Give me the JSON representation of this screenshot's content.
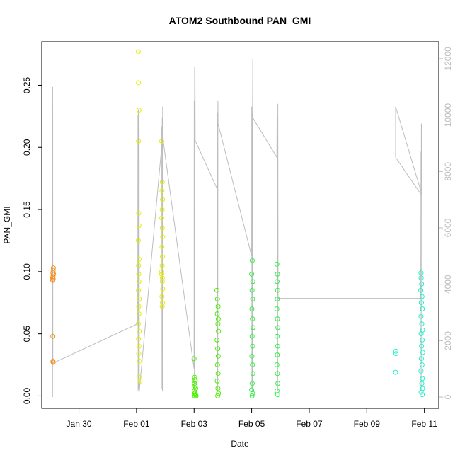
{
  "chart_data": {
    "type": "scatter",
    "title": "ATOM2 Southbound PAN_GMI",
    "xlabel": "Date",
    "ylabel": "PAN_GMI",
    "x_type": "date",
    "xlim": [
      "2017-01-28T17:00",
      "2017-02-11T12:00"
    ],
    "x_ticks": [
      {
        "date": "2017-01-30",
        "label": "Jan 30"
      },
      {
        "date": "2017-02-01",
        "label": "Feb 01"
      },
      {
        "date": "2017-02-03",
        "label": "Feb 03"
      },
      {
        "date": "2017-02-05",
        "label": "Feb 05"
      },
      {
        "date": "2017-02-07",
        "label": "Feb 07"
      },
      {
        "date": "2017-02-09",
        "label": "Feb 09"
      },
      {
        "date": "2017-02-11",
        "label": "Feb 11"
      }
    ],
    "ylim": [
      -0.01,
      0.285
    ],
    "y_ticks": [
      "0.00",
      "0.05",
      "0.10",
      "0.15",
      "0.20",
      "0.25"
    ],
    "y2lim": [
      -400,
      12600
    ],
    "y2_ticks": [
      "0",
      "2000",
      "4000",
      "6000",
      "8000",
      "10000",
      "12000"
    ],
    "grid": false,
    "marker": "open-circle",
    "altitude_color": "#bdbdbd",
    "groups": [
      {
        "color": "#f5901e",
        "points": [
          [
            "2017-01-29T02:00",
            0.095
          ],
          [
            "2017-01-29T02:10",
            0.093
          ],
          [
            "2017-01-29T02:20",
            0.099
          ],
          [
            "2017-01-29T02:30",
            0.101
          ],
          [
            "2017-01-29T02:40",
            0.103
          ],
          [
            "2017-01-29T02:50",
            0.098
          ],
          [
            "2017-01-29T02:20",
            0.096
          ],
          [
            "2017-01-29T02:30",
            0.094
          ],
          [
            "2017-01-29T02:15",
            0.048
          ],
          [
            "2017-01-29T02:20",
            0.028
          ],
          [
            "2017-01-29T02:30",
            0.027
          ]
        ]
      },
      {
        "color": "#e6f000",
        "points": [
          [
            "2017-02-01T01:30",
            0.277
          ],
          [
            "2017-02-01T01:40",
            0.252
          ],
          [
            "2017-02-01T02:00",
            0.23
          ],
          [
            "2017-02-01T01:40",
            0.205
          ],
          [
            "2017-02-01T01:50",
            0.147
          ],
          [
            "2017-02-01T02:00",
            0.137
          ],
          [
            "2017-02-01T01:30",
            0.125
          ],
          [
            "2017-02-01T02:10",
            0.11
          ],
          [
            "2017-02-01T01:40",
            0.105
          ],
          [
            "2017-02-01T01:50",
            0.098
          ],
          [
            "2017-02-01T02:00",
            0.092
          ],
          [
            "2017-02-01T01:40",
            0.085
          ],
          [
            "2017-02-01T02:20",
            0.078
          ],
          [
            "2017-02-01T01:50",
            0.072
          ],
          [
            "2017-02-01T02:00",
            0.066
          ],
          [
            "2017-02-01T01:30",
            0.058
          ],
          [
            "2017-02-01T02:10",
            0.052
          ],
          [
            "2017-02-01T01:40",
            0.046
          ],
          [
            "2017-02-01T02:00",
            0.04
          ],
          [
            "2017-02-01T01:50",
            0.034
          ],
          [
            "2017-02-01T02:20",
            0.028
          ],
          [
            "2017-02-01T02:00",
            0.015
          ],
          [
            "2017-02-01T03:00",
            0.012
          ],
          [
            "2017-02-01T21:00",
            0.205
          ],
          [
            "2017-02-01T21:30",
            0.172
          ],
          [
            "2017-02-01T21:10",
            0.165
          ],
          [
            "2017-02-01T21:40",
            0.158
          ],
          [
            "2017-02-01T21:20",
            0.15
          ],
          [
            "2017-02-01T21:00",
            0.143
          ],
          [
            "2017-02-01T21:30",
            0.135
          ],
          [
            "2017-02-01T21:50",
            0.128
          ],
          [
            "2017-02-01T21:10",
            0.12
          ],
          [
            "2017-02-01T21:40",
            0.112
          ],
          [
            "2017-02-01T21:20",
            0.105
          ],
          [
            "2017-02-01T21:00",
            0.098
          ],
          [
            "2017-02-01T21:30",
            0.092
          ],
          [
            "2017-02-01T21:50",
            0.086
          ],
          [
            "2017-02-01T21:10",
            0.08
          ],
          [
            "2017-02-01T21:40",
            0.075
          ],
          [
            "2017-02-01T21:20",
            0.072
          ],
          [
            "2017-02-01T21:00",
            0.1
          ],
          [
            "2017-02-01T21:30",
            0.095
          ]
        ]
      },
      {
        "color": "#4cf000",
        "points": [
          [
            "2017-02-03T00:00",
            0.03
          ],
          [
            "2017-02-03T00:30",
            0.015
          ],
          [
            "2017-02-03T01:00",
            0.012
          ],
          [
            "2017-02-03T00:20",
            0.01
          ],
          [
            "2017-02-03T00:50",
            0.008
          ],
          [
            "2017-02-03T01:20",
            0.006
          ],
          [
            "2017-02-03T00:10",
            0.004
          ],
          [
            "2017-02-03T00:40",
            0.002
          ],
          [
            "2017-02-03T01:10",
            0.001
          ],
          [
            "2017-02-03T01:40",
            0.0
          ],
          [
            "2017-02-03T00:30",
            0.0
          ],
          [
            "2017-02-03T00:50",
            0.013
          ],
          [
            "2017-02-03T19:00",
            0.085
          ],
          [
            "2017-02-03T19:30",
            0.078
          ],
          [
            "2017-02-03T20:00",
            0.072
          ],
          [
            "2017-02-03T19:20",
            0.066
          ],
          [
            "2017-02-03T19:50",
            0.058
          ],
          [
            "2017-02-03T20:20",
            0.052
          ],
          [
            "2017-02-03T19:10",
            0.045
          ],
          [
            "2017-02-03T19:40",
            0.038
          ],
          [
            "2017-02-03T20:10",
            0.032
          ],
          [
            "2017-02-03T19:30",
            0.025
          ],
          [
            "2017-02-03T20:00",
            0.018
          ],
          [
            "2017-02-03T19:20",
            0.012
          ],
          [
            "2017-02-03T19:50",
            0.006
          ],
          [
            "2017-02-03T20:20",
            0.002
          ],
          [
            "2017-02-03T19:40",
            0.0
          ],
          [
            "2017-02-03T20:10",
            0.062
          ]
        ]
      },
      {
        "color": "#2ff246",
        "points": [
          [
            "2017-02-05T00:30",
            0.109
          ],
          [
            "2017-02-05T00:00",
            0.098
          ],
          [
            "2017-02-05T01:00",
            0.092
          ],
          [
            "2017-02-05T00:20",
            0.085
          ],
          [
            "2017-02-05T00:50",
            0.078
          ],
          [
            "2017-02-05T00:10",
            0.07
          ],
          [
            "2017-02-05T00:40",
            0.062
          ],
          [
            "2017-02-05T01:10",
            0.055
          ],
          [
            "2017-02-05T00:20",
            0.048
          ],
          [
            "2017-02-05T00:50",
            0.04
          ],
          [
            "2017-02-05T00:10",
            0.032
          ],
          [
            "2017-02-05T00:40",
            0.025
          ],
          [
            "2017-02-05T01:00",
            0.018
          ],
          [
            "2017-02-05T00:30",
            0.01
          ],
          [
            "2017-02-05T00:00",
            0.005
          ],
          [
            "2017-02-05T00:50",
            0.002
          ],
          [
            "2017-02-05T00:20",
            0.0
          ],
          [
            "2017-02-05T21:00",
            0.106
          ],
          [
            "2017-02-05T21:30",
            0.098
          ],
          [
            "2017-02-05T21:10",
            0.092
          ],
          [
            "2017-02-05T21:40",
            0.085
          ],
          [
            "2017-02-05T21:20",
            0.078
          ],
          [
            "2017-02-05T21:00",
            0.07
          ],
          [
            "2017-02-05T21:30",
            0.062
          ],
          [
            "2017-02-05T21:50",
            0.055
          ],
          [
            "2017-02-05T21:10",
            0.048
          ],
          [
            "2017-02-05T21:40",
            0.04
          ],
          [
            "2017-02-05T21:20",
            0.033
          ],
          [
            "2017-02-05T21:00",
            0.025
          ],
          [
            "2017-02-05T21:30",
            0.018
          ],
          [
            "2017-02-05T21:50",
            0.01
          ],
          [
            "2017-02-05T21:10",
            0.004
          ],
          [
            "2017-02-05T21:40",
            0.001
          ]
        ]
      },
      {
        "color": "#23f0c8",
        "points": [
          [
            "2017-02-10T00:10",
            0.036
          ],
          [
            "2017-02-10T00:20",
            0.034
          ],
          [
            "2017-02-10T00:00",
            0.019
          ],
          [
            "2017-02-10T21:10",
            0.099
          ],
          [
            "2017-02-10T21:20",
            0.095
          ],
          [
            "2017-02-10T21:40",
            0.09
          ],
          [
            "2017-02-10T21:00",
            0.085
          ],
          [
            "2017-02-10T22:00",
            0.08
          ],
          [
            "2017-02-10T21:30",
            0.075
          ],
          [
            "2017-02-10T22:20",
            0.07
          ],
          [
            "2017-02-10T21:10",
            0.064
          ],
          [
            "2017-02-10T21:50",
            0.058
          ],
          [
            "2017-02-10T22:30",
            0.053
          ],
          [
            "2017-02-10T21:20",
            0.05
          ],
          [
            "2017-02-10T22:10",
            0.045
          ],
          [
            "2017-02-10T21:40",
            0.04
          ],
          [
            "2017-02-10T22:40",
            0.035
          ],
          [
            "2017-02-10T21:30",
            0.03
          ],
          [
            "2017-02-10T22:00",
            0.025
          ],
          [
            "2017-02-10T21:10",
            0.02
          ],
          [
            "2017-02-10T22:20",
            0.014
          ],
          [
            "2017-02-10T21:50",
            0.01
          ],
          [
            "2017-02-10T22:30",
            0.006
          ],
          [
            "2017-02-10T21:20",
            0.003
          ],
          [
            "2017-02-10T22:10",
            0.001
          ]
        ]
      }
    ],
    "altitude_series": [
      [
        "2017-01-29T02:00",
        0
      ],
      [
        "2017-01-29T02:05",
        11000
      ],
      [
        "2017-01-29T02:10",
        10000
      ],
      [
        "2017-01-29T02:15",
        1500
      ],
      [
        "2017-01-29T02:20",
        1200
      ],
      [
        "2017-02-01T01:00",
        2600
      ],
      [
        "2017-02-01T01:10",
        10000
      ],
      [
        "2017-02-01T01:20",
        200
      ],
      [
        "2017-02-01T01:30",
        10200
      ],
      [
        "2017-02-01T01:40",
        300
      ],
      [
        "2017-02-01T01:50",
        9800
      ],
      [
        "2017-02-01T02:00",
        500
      ],
      [
        "2017-02-01T02:05",
        10300
      ],
      [
        "2017-02-01T02:10",
        9700
      ],
      [
        "2017-02-01T02:20",
        200
      ],
      [
        "2017-02-01T21:00",
        8900
      ],
      [
        "2017-02-01T21:05",
        9600
      ],
      [
        "2017-02-01T21:15",
        300
      ],
      [
        "2017-02-01T21:25",
        9900
      ],
      [
        "2017-02-01T21:35",
        200
      ],
      [
        "2017-02-01T21:45",
        10300
      ],
      [
        "2017-02-01T21:55",
        9200
      ],
      [
        "2017-02-03T00:00",
        1000
      ],
      [
        "2017-02-03T00:05",
        10500
      ],
      [
        "2017-02-03T00:15",
        200
      ],
      [
        "2017-02-03T00:25",
        11700
      ],
      [
        "2017-02-03T00:35",
        400
      ],
      [
        "2017-02-03T00:45",
        11700
      ],
      [
        "2017-02-03T00:55",
        9100
      ],
      [
        "2017-02-03T19:00",
        7400
      ],
      [
        "2017-02-03T19:10",
        10000
      ],
      [
        "2017-02-03T19:20",
        300
      ],
      [
        "2017-02-03T19:30",
        10100
      ],
      [
        "2017-02-03T19:40",
        200
      ],
      [
        "2017-02-03T19:50",
        10500
      ],
      [
        "2017-02-03T20:00",
        9700
      ],
      [
        "2017-02-05T00:00",
        5000
      ],
      [
        "2017-02-05T00:05",
        10300
      ],
      [
        "2017-02-05T00:15",
        300
      ],
      [
        "2017-02-05T00:25",
        10100
      ],
      [
        "2017-02-05T00:35",
        200
      ],
      [
        "2017-02-05T00:45",
        10400
      ],
      [
        "2017-02-05T00:55",
        12000
      ],
      [
        "2017-02-05T01:00",
        9900
      ],
      [
        "2017-02-05T21:00",
        8500
      ],
      [
        "2017-02-05T21:10",
        9900
      ],
      [
        "2017-02-05T21:20",
        300
      ],
      [
        "2017-02-05T21:30",
        9900
      ],
      [
        "2017-02-05T21:40",
        200
      ],
      [
        "2017-02-05T21:50",
        10400
      ],
      [
        "2017-02-05T22:00",
        3500
      ],
      [
        "2017-02-10T21:00",
        3500
      ],
      [
        "2017-02-10T21:10",
        8700
      ],
      [
        "2017-02-10T21:20",
        200
      ],
      [
        "2017-02-10T21:30",
        9700
      ],
      [
        "2017-02-10T21:40",
        9500
      ],
      [
        "2017-02-10T21:50",
        7200
      ],
      [
        "2017-02-10T00:00",
        10300
      ],
      [
        "2017-02-10T00:02",
        8500
      ],
      [
        "2017-02-10T21:00",
        7200
      ]
    ]
  }
}
